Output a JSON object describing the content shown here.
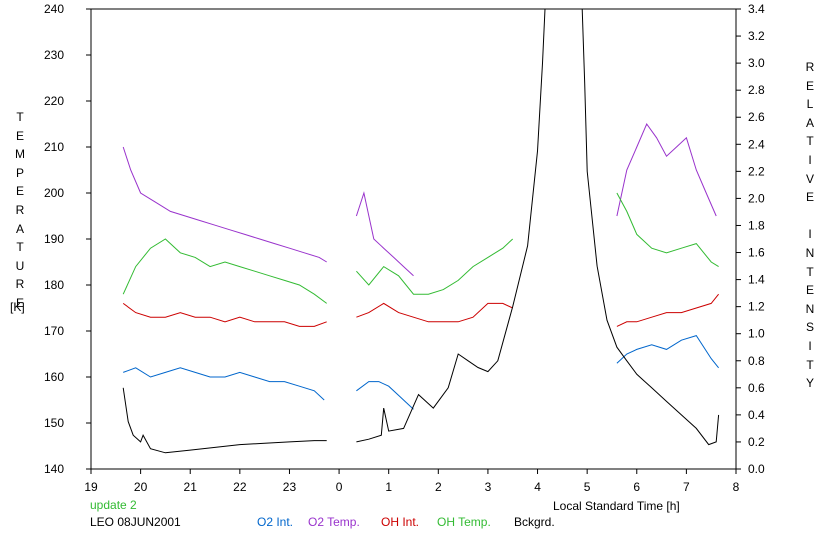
{
  "chart_data": {
    "type": "line",
    "title": "",
    "xlabel": "Local Standard Time [h]",
    "ylabel_left": "TEMPERATURE",
    "ylabel_left_unit": "[K]",
    "ylabel_right": "RELATIVE INTENSITY",
    "x_tick_labels": [
      "19",
      "20",
      "21",
      "22",
      "23",
      "0",
      "1",
      "2",
      "3",
      "4",
      "5",
      "6",
      "7",
      "8"
    ],
    "xlim": [
      19,
      32
    ],
    "ylim_left": [
      140,
      240
    ],
    "y_left_ticks": [
      140,
      150,
      160,
      170,
      180,
      190,
      200,
      210,
      220,
      230,
      240
    ],
    "ylim_right": [
      0.0,
      3.4
    ],
    "y_right_ticks": [
      "0.0",
      "0.2",
      "0.4",
      "0.6",
      "0.8",
      "1.0",
      "1.2",
      "1.4",
      "1.6",
      "1.8",
      "2.0",
      "2.2",
      "2.4",
      "2.6",
      "2.8",
      "3.0",
      "3.2",
      "3.4"
    ],
    "footer_update": "update 2",
    "footer_station": "LEO 08JUN2001",
    "series": [
      {
        "name": "O2 Int.",
        "color": "#0066cc",
        "axis": "left",
        "x": [
          19.65,
          19.9,
          20.2,
          20.5,
          20.8,
          21.1,
          21.4,
          21.7,
          22.0,
          22.3,
          22.6,
          22.9,
          23.2,
          23.5,
          23.7,
          24.35,
          24.6,
          24.8,
          25.0,
          25.2,
          25.4,
          25.5,
          29.6,
          29.8,
          30.0,
          30.3,
          30.6,
          30.9,
          31.2,
          31.5,
          31.65
        ],
        "y": [
          161,
          162,
          160,
          161,
          162,
          161,
          160,
          160,
          161,
          160,
          159,
          159,
          158,
          157,
          155,
          157,
          159,
          159,
          158,
          156,
          154,
          153,
          163,
          165,
          166,
          167,
          166,
          168,
          169,
          164,
          162
        ]
      },
      {
        "name": "O2 Temp.",
        "color": "#9933cc",
        "axis": "left",
        "x": [
          19.65,
          19.8,
          20.0,
          20.3,
          20.6,
          20.9,
          21.2,
          21.5,
          21.8,
          22.1,
          22.4,
          22.7,
          23.0,
          23.3,
          23.6,
          23.75,
          24.35,
          24.5,
          24.7,
          24.9,
          25.1,
          25.3,
          25.5,
          29.6,
          29.8,
          30.0,
          30.2,
          30.4,
          30.6,
          30.8,
          31.0,
          31.2,
          31.4,
          31.6
        ],
        "y": [
          210,
          205,
          200,
          198,
          196,
          195,
          194,
          193,
          192,
          191,
          190,
          189,
          188,
          187,
          186,
          185,
          195,
          200,
          190,
          188,
          186,
          184,
          182,
          195,
          205,
          210,
          215,
          212,
          208,
          210,
          212,
          205,
          200,
          195
        ]
      },
      {
        "name": "OH Int.",
        "color": "#cc0000",
        "axis": "left",
        "x": [
          19.65,
          19.9,
          20.2,
          20.5,
          20.8,
          21.1,
          21.4,
          21.7,
          22.0,
          22.3,
          22.6,
          22.9,
          23.2,
          23.5,
          23.75,
          24.35,
          24.6,
          24.9,
          25.2,
          25.5,
          25.8,
          26.1,
          26.4,
          26.7,
          27.0,
          27.3,
          27.5,
          29.6,
          29.8,
          30.0,
          30.3,
          30.6,
          30.9,
          31.2,
          31.5,
          31.65
        ],
        "y": [
          176,
          174,
          173,
          173,
          174,
          173,
          173,
          172,
          173,
          172,
          172,
          172,
          171,
          171,
          172,
          173,
          174,
          176,
          174,
          173,
          172,
          172,
          172,
          173,
          176,
          176,
          175,
          171,
          172,
          172,
          173,
          174,
          174,
          175,
          176,
          178
        ]
      },
      {
        "name": "OH Temp.",
        "color": "#33bb33",
        "axis": "left",
        "x": [
          19.65,
          19.9,
          20.2,
          20.5,
          20.8,
          21.1,
          21.4,
          21.7,
          22.0,
          22.3,
          22.6,
          22.9,
          23.2,
          23.5,
          23.75,
          24.35,
          24.6,
          24.9,
          25.2,
          25.5,
          25.8,
          26.1,
          26.4,
          26.7,
          27.0,
          27.3,
          27.5,
          29.6,
          29.8,
          30.0,
          30.3,
          30.6,
          30.9,
          31.2,
          31.5,
          31.65
        ],
        "y": [
          178,
          184,
          188,
          190,
          187,
          186,
          184,
          185,
          184,
          183,
          182,
          181,
          180,
          178,
          176,
          183,
          180,
          184,
          182,
          178,
          178,
          179,
          181,
          184,
          186,
          188,
          190,
          200,
          196,
          191,
          188,
          187,
          188,
          189,
          185,
          184
        ]
      },
      {
        "name": "Bckgrd.",
        "color": "#000000",
        "axis": "right",
        "x": [
          19.65,
          19.75,
          19.85,
          20.0,
          20.05,
          20.2,
          20.5,
          21.0,
          21.5,
          22.0,
          22.5,
          23.0,
          23.5,
          23.75,
          24.35,
          24.6,
          24.85,
          24.9,
          25.0,
          25.3,
          25.6,
          25.9,
          26.2,
          26.4,
          26.6,
          26.8,
          27.0,
          27.2,
          27.5,
          27.8,
          28.0,
          28.1,
          28.15,
          28.9,
          28.95,
          29.0,
          29.2,
          29.4,
          29.6,
          29.8,
          30.0,
          30.3,
          30.6,
          30.9,
          31.2,
          31.45,
          31.6,
          31.65
        ],
        "y": [
          0.6,
          0.35,
          0.25,
          0.2,
          0.25,
          0.15,
          0.12,
          0.14,
          0.16,
          0.18,
          0.19,
          0.2,
          0.21,
          0.21,
          0.2,
          0.22,
          0.25,
          0.45,
          0.28,
          0.3,
          0.55,
          0.45,
          0.6,
          0.85,
          0.8,
          0.75,
          0.72,
          0.8,
          1.2,
          1.65,
          2.35,
          3.0,
          3.45,
          3.45,
          2.85,
          2.2,
          1.5,
          1.1,
          0.9,
          0.8,
          0.7,
          0.6,
          0.5,
          0.4,
          0.3,
          0.18,
          0.2,
          0.4
        ]
      }
    ]
  }
}
